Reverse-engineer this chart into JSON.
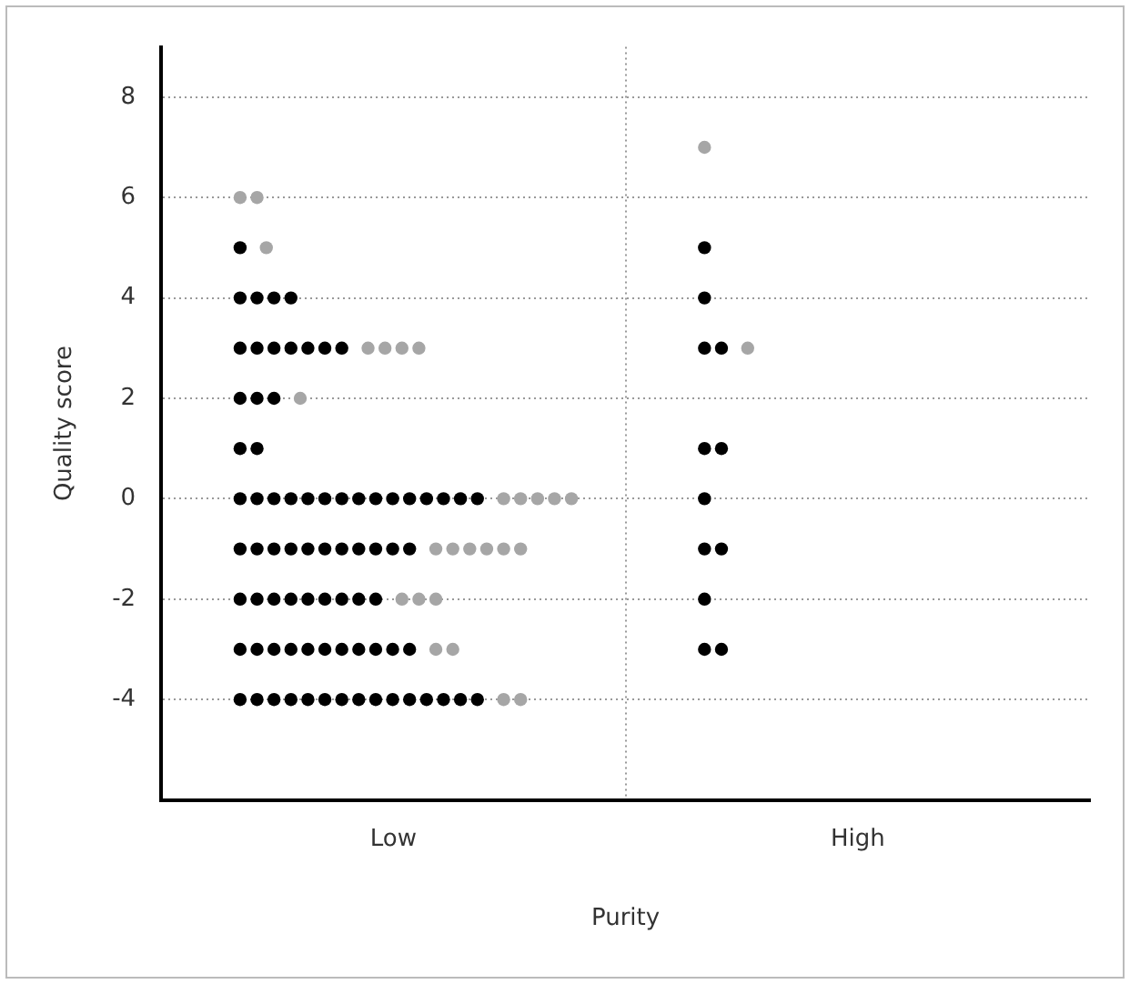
{
  "chart_data": {
    "type": "scatter",
    "xlabel": "Purity",
    "ylabel": "Quality score",
    "categories": [
      "Low",
      "High"
    ],
    "ylim": [
      -6,
      9
    ],
    "yticks": [
      -4,
      -2,
      0,
      2,
      4,
      6,
      8
    ],
    "grid": true,
    "legend": false,
    "marker": "circle",
    "series": [
      {
        "color": "#000000",
        "x": [
          "Low",
          "Low",
          "Low",
          "Low",
          "Low",
          "Low",
          "Low",
          "Low",
          "Low",
          "Low",
          "Low",
          "Low",
          "Low",
          "Low",
          "Low",
          "Low",
          "Low",
          "Low",
          "Low",
          "Low",
          "Low",
          "Low",
          "Low",
          "Low",
          "Low",
          "Low",
          "Low",
          "Low",
          "Low",
          "Low",
          "Low",
          "Low",
          "Low",
          "Low",
          "Low",
          "Low",
          "Low",
          "Low",
          "Low",
          "Low",
          "Low",
          "Low",
          "Low",
          "Low",
          "Low",
          "Low",
          "Low",
          "Low",
          "Low",
          "Low",
          "Low",
          "Low",
          "Low",
          "Low",
          "Low",
          "Low",
          "Low",
          "Low",
          "Low",
          "Low",
          "Low",
          "Low",
          "Low",
          "Low",
          "Low",
          "Low",
          "Low",
          "Low",
          "Low",
          "Low",
          "Low",
          "Low",
          "Low",
          "Low",
          "Low",
          "Low",
          "Low",
          "Low",
          "High",
          "High",
          "High",
          "High",
          "High",
          "High",
          "High",
          "High",
          "High",
          "High",
          "High",
          "High"
        ],
        "values": [
          5,
          4,
          4,
          4,
          4,
          3,
          3,
          3,
          3,
          3,
          3,
          3,
          2,
          2,
          2,
          1,
          1,
          0,
          0,
          0,
          0,
          0,
          0,
          0,
          0,
          0,
          0,
          0,
          0,
          0,
          0,
          0,
          -1,
          -1,
          -1,
          -1,
          -1,
          -1,
          -1,
          -1,
          -1,
          -1,
          -1,
          -2,
          -2,
          -2,
          -2,
          -2,
          -2,
          -2,
          -2,
          -2,
          -3,
          -3,
          -3,
          -3,
          -3,
          -3,
          -3,
          -3,
          -3,
          -3,
          -3,
          -4,
          -4,
          -4,
          -4,
          -4,
          -4,
          -4,
          -4,
          -4,
          -4,
          -4,
          -4,
          -4,
          -4,
          -4,
          5,
          4,
          3,
          3,
          1,
          1,
          0,
          -1,
          -1,
          -2,
          -3,
          -3
        ]
      },
      {
        "color": "#a6a6a6",
        "x": [
          "Low",
          "Low",
          "Low",
          "Low",
          "Low",
          "Low",
          "Low",
          "Low",
          "Low",
          "Low",
          "Low",
          "Low",
          "Low",
          "Low",
          "Low",
          "Low",
          "Low",
          "Low",
          "Low",
          "Low",
          "Low",
          "Low",
          "Low",
          "Low",
          "Low",
          "Low",
          "High",
          "High"
        ],
        "values": [
          6,
          6,
          5,
          3,
          3,
          3,
          3,
          2,
          0,
          0,
          0,
          0,
          0,
          -1,
          -1,
          -1,
          -1,
          -1,
          -1,
          -2,
          -2,
          -2,
          -3,
          -3,
          -4,
          -4,
          7,
          3
        ]
      }
    ]
  }
}
